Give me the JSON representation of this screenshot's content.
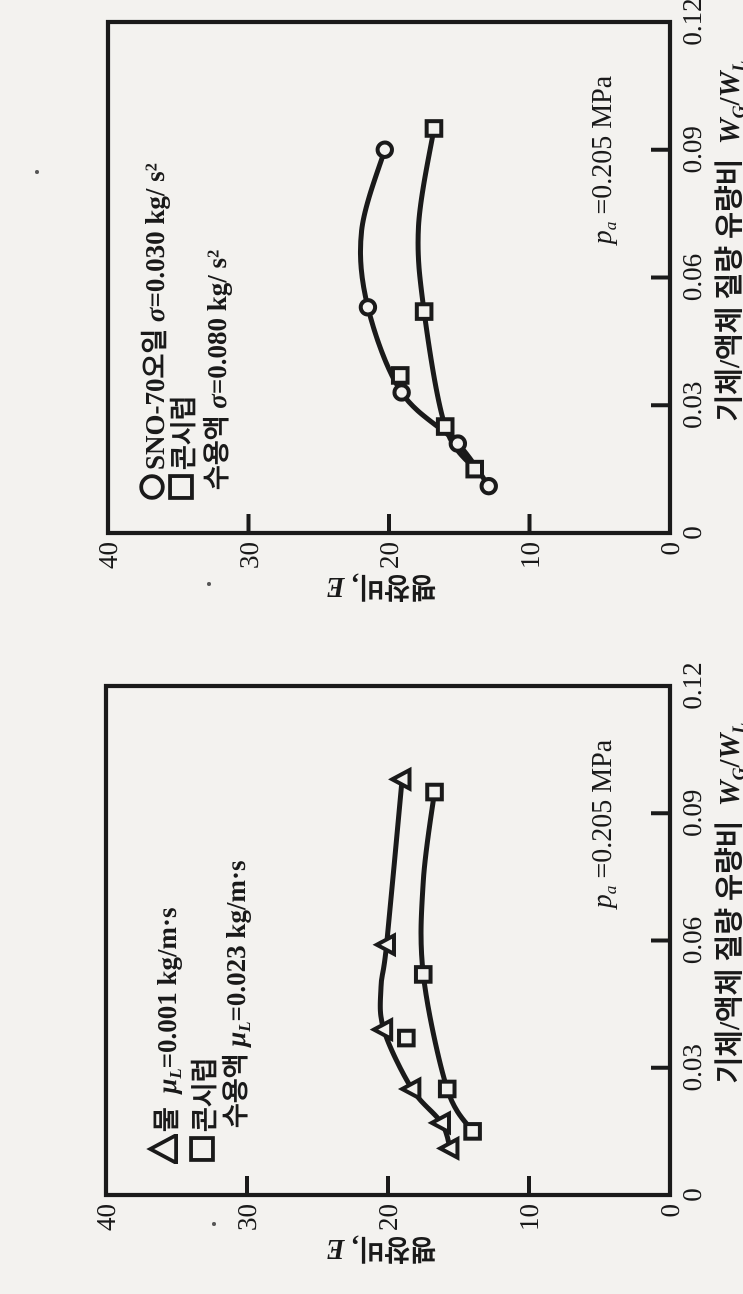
{
  "page": {
    "background": "#f3f2ef",
    "ink": "#1a1a1a",
    "specks": [
      [
        35,
        170
      ],
      [
        207,
        582
      ],
      [
        212,
        1222
      ]
    ]
  },
  "chart_data": [
    {
      "type": "scatter-line",
      "xlabel": "기체/액체 질량 유량비 WG/WL",
      "ylabel": "팽창비, E",
      "xlim": [
        0,
        0.12
      ],
      "ylim": [
        0,
        40
      ],
      "annotation": "pa =0.205 MPa",
      "x_axis": {
        "max": 0.12,
        "ticks": [
          0,
          0.03,
          0.06,
          0.09,
          0.12
        ],
        "tick_labels": [
          "0",
          "0.03",
          "0.06",
          "0.09",
          "0.12"
        ],
        "title_segs": [
          "기체/액체 질량 유량비  ",
          [
            "i",
            "W"
          ],
          [
            "isub",
            "G"
          ],
          "/",
          [
            "i",
            "W"
          ],
          [
            "isub",
            "L"
          ]
        ]
      },
      "y_axis": {
        "max": 40,
        "ticks": [
          0,
          10,
          20,
          30,
          40
        ],
        "tick_labels": [
          "0",
          "10",
          "20",
          "30",
          "40"
        ],
        "title_segs": [
          "팽창비, ",
          [
            "i",
            "E"
          ]
        ]
      },
      "annotation_segs": [
        [
          "i",
          "p"
        ],
        [
          "isub",
          "a"
        ],
        " =0.205 MPa"
      ],
      "legend_rows": [
        {
          "marker": "circle",
          "segs": [
            "SNO-70오일 ",
            [
              "i",
              "σ"
            ],
            "=0.030 kg/ s",
            [
              "sup",
              "2"
            ]
          ]
        },
        {
          "marker": "square",
          "segs": [
            "콘시럽"
          ]
        },
        {
          "marker": null,
          "segs": [
            "수용액 ",
            [
              "i",
              "σ"
            ],
            "=0.080 kg/ s",
            [
              "sup",
              "2"
            ]
          ]
        }
      ],
      "series": [
        {
          "name": "SNO-70오일",
          "marker": "circle",
          "x": [
            0.011,
            0.021,
            0.033,
            0.053,
            0.09
          ],
          "y": [
            12.9,
            15.1,
            19.1,
            21.5,
            20.3
          ],
          "curve_points": [
            [
              0.011,
              12.9
            ],
            [
              0.021,
              15.1
            ],
            [
              0.033,
              19.1
            ],
            [
              0.053,
              21.5
            ],
            [
              0.071,
              21.95
            ],
            [
              0.09,
              20.3
            ]
          ]
        },
        {
          "name": "콘시럽 수용액",
          "marker": "square",
          "x": [
            0.015,
            0.025,
            0.037,
            0.052,
            0.095
          ],
          "y": [
            13.9,
            16.0,
            19.2,
            17.5,
            16.8
          ],
          "curve_points": [
            [
              0.015,
              13.9
            ],
            [
              0.025,
              16.0
            ],
            [
              0.052,
              17.5
            ],
            [
              0.072,
              17.9
            ],
            [
              0.095,
              16.8
            ]
          ]
        }
      ]
    },
    {
      "type": "scatter-line",
      "xlabel": "기체/액체 질량 유량비 WG/WL",
      "ylabel": "팽창비, E",
      "xlim": [
        0,
        0.12
      ],
      "ylim": [
        0,
        40
      ],
      "annotation": "pa =0.205 MPa",
      "x_axis": {
        "max": 0.12,
        "ticks": [
          0,
          0.03,
          0.06,
          0.09,
          0.12
        ],
        "tick_labels": [
          "0",
          "0.03",
          "0.06",
          "0.09",
          "0.12"
        ],
        "title_segs": [
          "기체/액체 질량 유량비  ",
          [
            "i",
            "W"
          ],
          [
            "isub",
            "G"
          ],
          "/",
          [
            "i",
            "W"
          ],
          [
            "isub",
            "L"
          ]
        ]
      },
      "y_axis": {
        "max": 40,
        "ticks": [
          0,
          10,
          20,
          30,
          40
        ],
        "tick_labels": [
          "0",
          "10",
          "20",
          "30",
          "40"
        ],
        "title_segs": [
          "팽창비, ",
          [
            "i",
            "E"
          ]
        ]
      },
      "annotation_segs": [
        [
          "i",
          "p"
        ],
        [
          "isub",
          "a"
        ],
        " =0.205 MPa"
      ],
      "legend_rows": [
        {
          "marker": "triangle",
          "segs": [
            "물  ",
            [
              "i",
              "μ"
            ],
            [
              "isub",
              "L"
            ],
            "=0.001 kg/m·s"
          ]
        },
        {
          "marker": "square",
          "segs": [
            "콘시럽"
          ]
        },
        {
          "marker": null,
          "segs": [
            "수용액 ",
            [
              "i",
              "μ"
            ],
            [
              "isub",
              "L"
            ],
            "=0.023 kg/m·s"
          ]
        }
      ],
      "series": [
        {
          "name": "물",
          "marker": "triangle",
          "x": [
            0.011,
            0.017,
            0.025,
            0.039,
            0.059,
            0.098
          ],
          "y": [
            15.6,
            16.2,
            18.3,
            20.3,
            20.1,
            19.0
          ],
          "curve_points": [
            [
              0.011,
              15.6
            ],
            [
              0.017,
              16.2
            ],
            [
              0.025,
              18.3
            ],
            [
              0.039,
              20.3
            ],
            [
              0.049,
              20.5
            ],
            [
              0.059,
              20.1
            ],
            [
              0.098,
              19.0
            ]
          ]
        },
        {
          "name": "콘시럽 수용액",
          "marker": "square",
          "x": [
            0.015,
            0.025,
            0.037,
            0.052,
            0.095
          ],
          "y": [
            14.0,
            15.8,
            18.7,
            17.5,
            16.7
          ],
          "curve_points": [
            [
              0.015,
              14.0
            ],
            [
              0.025,
              15.8
            ],
            [
              0.052,
              17.5
            ],
            [
              0.074,
              17.5
            ],
            [
              0.095,
              16.7
            ]
          ]
        }
      ]
    }
  ]
}
